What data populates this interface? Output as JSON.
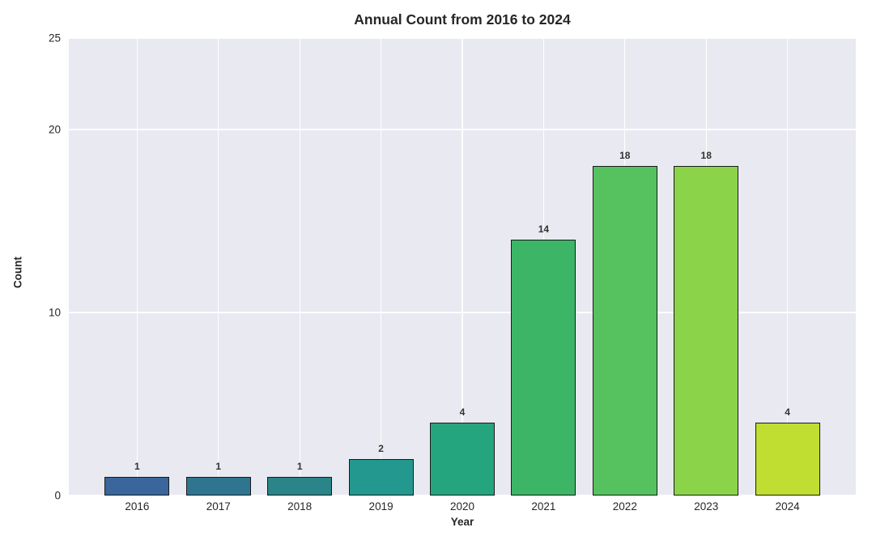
{
  "chart_data": {
    "type": "bar",
    "title": "Annual Count from 2016 to 2024",
    "xlabel": "Year",
    "ylabel": "Count",
    "categories": [
      "2016",
      "2017",
      "2018",
      "2019",
      "2020",
      "2021",
      "2022",
      "2023",
      "2024"
    ],
    "values": [
      1,
      1,
      1,
      2,
      4,
      14,
      18,
      18,
      4
    ],
    "value_labels": [
      "1",
      "1",
      "1",
      "2",
      "4",
      "14",
      "18",
      "18",
      "4"
    ],
    "bar_colors": [
      "#3a669b",
      "#2f7590",
      "#2b8487",
      "#23988e",
      "#25a57d",
      "#3cb567",
      "#55c25f",
      "#8bd44a",
      "#c0de31"
    ],
    "ylim": [
      0,
      25
    ],
    "yticks": [
      0,
      10,
      20,
      25
    ],
    "ytick_labels": [
      "0",
      "10",
      "20",
      "25"
    ],
    "grid": true,
    "legend": false,
    "plot_background": "#e9e9f1",
    "grid_color": "#ffffff",
    "bar_edge_color": "#1a1a1a",
    "text_color": "#262626",
    "value_label_color": "#333333"
  }
}
